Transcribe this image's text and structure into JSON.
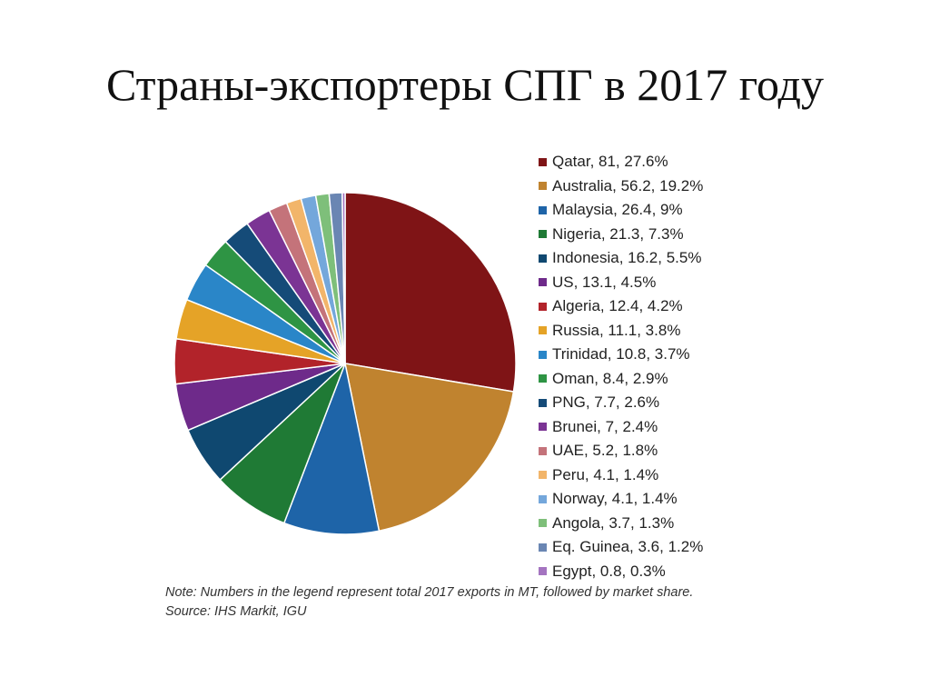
{
  "slide": {
    "title": "Страны-экспортеры СПГ в 2017 году"
  },
  "chart_data": {
    "type": "pie",
    "slices": [
      {
        "label": "Qatar, 81, 27.6%",
        "country": "Qatar",
        "value": 81,
        "share": 27.6,
        "color": "#7f1416"
      },
      {
        "label": "Australia, 56.2, 19.2%",
        "country": "Australia",
        "value": 56.2,
        "share": 19.2,
        "color": "#c0832f"
      },
      {
        "label": "Malaysia, 26.4, 9%",
        "country": "Malaysia",
        "value": 26.4,
        "share": 9,
        "color": "#1e64a8"
      },
      {
        "label": "Nigeria, 21.3, 7.3%",
        "country": "Nigeria",
        "value": 21.3,
        "share": 7.3,
        "color": "#1f7a35"
      },
      {
        "label": "Indonesia, 16.2, 5.5%",
        "country": "Indonesia",
        "value": 16.2,
        "share": 5.5,
        "color": "#0f4870"
      },
      {
        "label": "US, 13.1, 4.5%",
        "country": "US",
        "value": 13.1,
        "share": 4.5,
        "color": "#6e2a8a"
      },
      {
        "label": "Algeria, 12.4, 4.2%",
        "country": "Algeria",
        "value": 12.4,
        "share": 4.2,
        "color": "#b2232a"
      },
      {
        "label": "Russia, 11.1, 3.8%",
        "country": "Russia",
        "value": 11.1,
        "share": 3.8,
        "color": "#e5a327"
      },
      {
        "label": "Trinidad, 10.8, 3.7%",
        "country": "Trinidad",
        "value": 10.8,
        "share": 3.7,
        "color": "#2a86c8"
      },
      {
        "label": "Oman, 8.4, 2.9%",
        "country": "Oman",
        "value": 8.4,
        "share": 2.9,
        "color": "#2e9444"
      },
      {
        "label": "PNG, 7.7, 2.6%",
        "country": "PNG",
        "value": 7.7,
        "share": 2.6,
        "color": "#154b78"
      },
      {
        "label": "Brunei, 7, 2.4%",
        "country": "Brunei",
        "value": 7,
        "share": 2.4,
        "color": "#7b3494"
      },
      {
        "label": "UAE, 5.2, 1.8%",
        "country": "UAE",
        "value": 5.2,
        "share": 1.8,
        "color": "#c4737a"
      },
      {
        "label": "Peru, 4.1, 1.4%",
        "country": "Peru",
        "value": 4.1,
        "share": 1.4,
        "color": "#f2b56a"
      },
      {
        "label": "Norway, 4.1, 1.4%",
        "country": "Norway",
        "value": 4.1,
        "share": 1.4,
        "color": "#74a7db"
      },
      {
        "label": "Angola, 3.7, 1.3%",
        "country": "Angola",
        "value": 3.7,
        "share": 1.3,
        "color": "#7ebf7a"
      },
      {
        "label": "Eq. Guinea, 3.6, 1.2%",
        "country": "Eq. Guinea",
        "value": 3.6,
        "share": 1.2,
        "color": "#6a86b3"
      },
      {
        "label": "Egypt, 0.8, 0.3%",
        "country": "Egypt",
        "value": 0.8,
        "share": 0.3,
        "color": "#a474c0"
      }
    ],
    "legend_position": "right",
    "note": "Note: Numbers in the legend represent total 2017 exports in MT, followed by market share. Source: IHS Markit, IGU"
  }
}
